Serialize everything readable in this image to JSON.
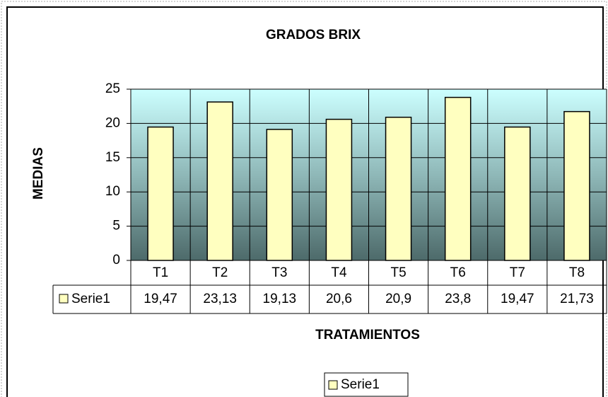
{
  "chart_data": {
    "type": "bar",
    "title": "GRADOS BRIX",
    "y_label": "MEDIAS",
    "x_label": "TRATAMIENTOS",
    "categories": [
      "T1",
      "T2",
      "T3",
      "T4",
      "T5",
      "T6",
      "T7",
      "T8"
    ],
    "series": [
      {
        "name": "Serie1",
        "color": "#ffffc0",
        "values": [
          19.47,
          23.13,
          19.13,
          20.6,
          20.9,
          23.8,
          19.47,
          21.73
        ],
        "value_labels": [
          "19,47",
          "23,13",
          "19,13",
          "20,6",
          "20,9",
          "23,8",
          "19,47",
          "21,73"
        ]
      }
    ],
    "ylim": [
      0,
      25
    ],
    "yticks": [
      0,
      5,
      10,
      15,
      20,
      25
    ],
    "grid": true,
    "data_table": true,
    "legend": "bottom"
  }
}
